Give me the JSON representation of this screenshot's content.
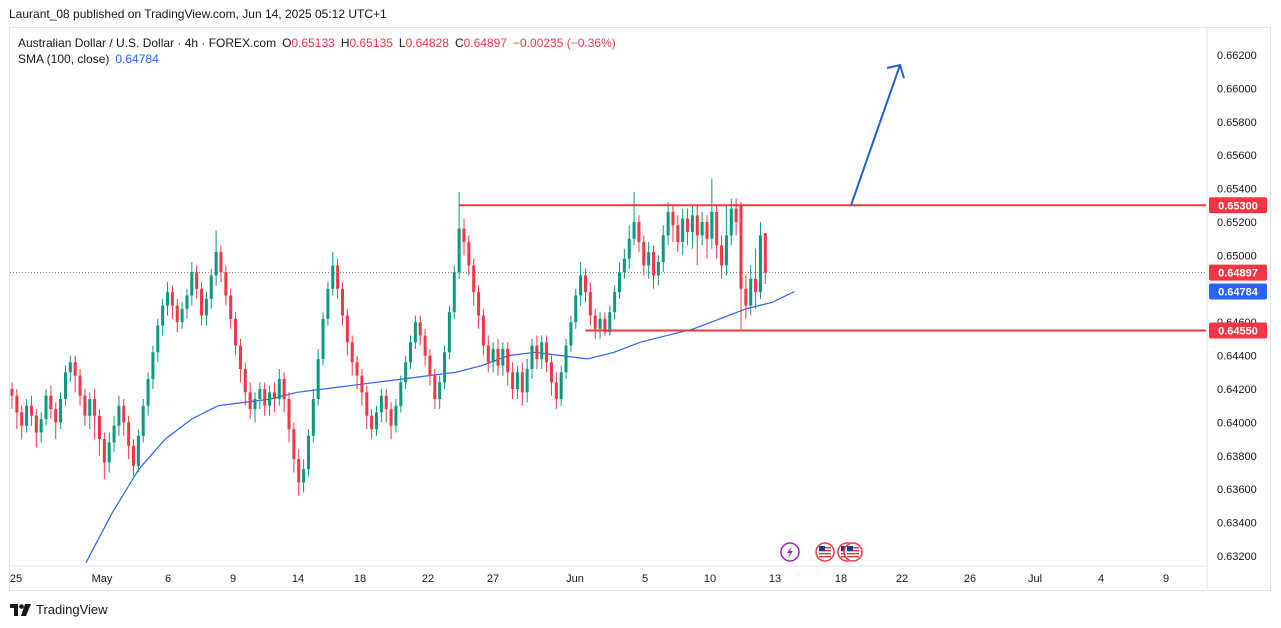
{
  "header": {
    "published": "Laurant_08 published on TradingView.com, Jun 14, 2025 05:12 UTC+1"
  },
  "legend": {
    "symbol": "Australian Dollar / U.S. Dollar · 4h · FOREX.com",
    "o_label": "O",
    "o_value": "0.65133",
    "h_label": "H",
    "h_value": "0.65135",
    "l_label": "L",
    "l_value": "0.64828",
    "c_label": "C",
    "c_value": "0.64897",
    "change": "−0.00235 (−0.36%)",
    "sma_label": "SMA (100, close)",
    "sma_value": "0.64784"
  },
  "brand": {
    "name": "TradingView"
  },
  "colors": {
    "up": "#089981",
    "down": "#f23645",
    "sma": "#2962ff",
    "level": "#f23645",
    "arrow": "#1e5fd6",
    "grid": "#f0f3fa"
  },
  "chart_data": {
    "type": "candlestick",
    "timeframe": "4h",
    "ylim": [
      0.6312,
      0.6628
    ],
    "y_ticks": [
      "0.66200",
      "0.66000",
      "0.65800",
      "0.65600",
      "0.65400",
      "0.65200",
      "0.65000",
      "0.64600",
      "0.64400",
      "0.64200",
      "0.64000",
      "0.63800",
      "0.63600",
      "0.63400",
      "0.63200"
    ],
    "x_ticks": [
      "25",
      "May",
      "6",
      "9",
      "14",
      "18",
      "22",
      "27",
      "Jun",
      "5",
      "10",
      "13",
      "18",
      "22",
      "26",
      "Jul",
      "4",
      "9"
    ],
    "price_labels": [
      {
        "label": "0.65300",
        "value": 0.653,
        "color": "#f23645"
      },
      {
        "label": "0.64897",
        "value": 0.64897,
        "color": "#f23645"
      },
      {
        "label": "0.64784",
        "value": 0.64784,
        "color": "#2962ff"
      },
      {
        "label": "0.64550",
        "value": 0.6455,
        "color": "#f23645"
      }
    ],
    "resistance": {
      "value": 0.653,
      "from_index": 92,
      "to_index": "end"
    },
    "support": {
      "value": 0.6455,
      "from_index": 118,
      "to_index": "end"
    },
    "current_price": 0.64897,
    "projection_arrow": {
      "from_price": 0.653,
      "to_price": 0.6614,
      "direction": "up"
    },
    "events": [
      "lightning",
      "us-flag",
      "us-flag",
      "us-flag"
    ],
    "candles": [
      [
        0.642,
        0.6416,
        0.6424,
        0.6408
      ],
      [
        0.6416,
        0.6406,
        0.642,
        0.6396
      ],
      [
        0.6406,
        0.6398,
        0.641,
        0.639
      ],
      [
        0.6398,
        0.641,
        0.6414,
        0.6394
      ],
      [
        0.641,
        0.6404,
        0.6416,
        0.6398
      ],
      [
        0.6404,
        0.6394,
        0.6408,
        0.6385
      ],
      [
        0.6394,
        0.6402,
        0.6406,
        0.6388
      ],
      [
        0.6402,
        0.6416,
        0.642,
        0.6398
      ],
      [
        0.6416,
        0.6408,
        0.6422,
        0.6402
      ],
      [
        0.6408,
        0.64,
        0.6412,
        0.639
      ],
      [
        0.64,
        0.6414,
        0.6418,
        0.6396
      ],
      [
        0.6414,
        0.643,
        0.6434,
        0.641
      ],
      [
        0.643,
        0.6436,
        0.644,
        0.6424
      ],
      [
        0.6436,
        0.6428,
        0.644,
        0.6418
      ],
      [
        0.6428,
        0.6416,
        0.6432,
        0.641
      ],
      [
        0.6416,
        0.6404,
        0.642,
        0.6398
      ],
      [
        0.6404,
        0.6414,
        0.6418,
        0.6396
      ],
      [
        0.6414,
        0.6404,
        0.642,
        0.639
      ],
      [
        0.6404,
        0.639,
        0.6408,
        0.638
      ],
      [
        0.639,
        0.6376,
        0.6394,
        0.6366
      ],
      [
        0.6376,
        0.6388,
        0.6394,
        0.637
      ],
      [
        0.6388,
        0.6398,
        0.6404,
        0.6382
      ],
      [
        0.6398,
        0.641,
        0.6416,
        0.6392
      ],
      [
        0.641,
        0.64,
        0.6414,
        0.6392
      ],
      [
        0.64,
        0.6386,
        0.6404,
        0.6378
      ],
      [
        0.6386,
        0.6374,
        0.639,
        0.6368
      ],
      [
        0.6374,
        0.6392,
        0.6396,
        0.637
      ],
      [
        0.6392,
        0.641,
        0.6414,
        0.6388
      ],
      [
        0.641,
        0.6426,
        0.643,
        0.6404
      ],
      [
        0.6426,
        0.6442,
        0.6446,
        0.642
      ],
      [
        0.6442,
        0.6458,
        0.6462,
        0.6436
      ],
      [
        0.6458,
        0.647,
        0.6474,
        0.6452
      ],
      [
        0.647,
        0.6478,
        0.6484,
        0.6464
      ],
      [
        0.6478,
        0.647,
        0.6482,
        0.6462
      ],
      [
        0.647,
        0.646,
        0.6474,
        0.6454
      ],
      [
        0.646,
        0.6468,
        0.6472,
        0.6456
      ],
      [
        0.6468,
        0.6476,
        0.648,
        0.6462
      ],
      [
        0.6476,
        0.649,
        0.6496,
        0.647
      ],
      [
        0.649,
        0.648,
        0.6494,
        0.6474
      ],
      [
        0.648,
        0.6464,
        0.6484,
        0.6458
      ],
      [
        0.6464,
        0.6474,
        0.6478,
        0.6458
      ],
      [
        0.6474,
        0.6488,
        0.6492,
        0.6468
      ],
      [
        0.6488,
        0.6502,
        0.6515,
        0.6482
      ],
      [
        0.6502,
        0.649,
        0.6506,
        0.6484
      ],
      [
        0.649,
        0.6476,
        0.6494,
        0.647
      ],
      [
        0.6476,
        0.6462,
        0.648,
        0.6456
      ],
      [
        0.6462,
        0.6446,
        0.6466,
        0.644
      ],
      [
        0.6446,
        0.6432,
        0.645,
        0.6424
      ],
      [
        0.6432,
        0.6418,
        0.6436,
        0.641
      ],
      [
        0.6418,
        0.6408,
        0.6424,
        0.6402
      ],
      [
        0.6408,
        0.6414,
        0.6418,
        0.64
      ],
      [
        0.6414,
        0.642,
        0.6424,
        0.6408
      ],
      [
        0.642,
        0.641,
        0.6424,
        0.6404
      ],
      [
        0.641,
        0.6418,
        0.6422,
        0.6404
      ],
      [
        0.6418,
        0.6414,
        0.6424,
        0.6406
      ],
      [
        0.6414,
        0.6426,
        0.6432,
        0.641
      ],
      [
        0.6426,
        0.6414,
        0.643,
        0.6406
      ],
      [
        0.6414,
        0.6396,
        0.6418,
        0.6388
      ],
      [
        0.6396,
        0.6378,
        0.64,
        0.637
      ],
      [
        0.6378,
        0.6364,
        0.6384,
        0.6356
      ],
      [
        0.6364,
        0.6372,
        0.6378,
        0.6358
      ],
      [
        0.6372,
        0.6392,
        0.6396,
        0.6368
      ],
      [
        0.6392,
        0.6414,
        0.642,
        0.6388
      ],
      [
        0.6414,
        0.6438,
        0.6444,
        0.641
      ],
      [
        0.6438,
        0.6462,
        0.6466,
        0.6434
      ],
      [
        0.6462,
        0.648,
        0.6484,
        0.6458
      ],
      [
        0.648,
        0.6494,
        0.6502,
        0.6476
      ],
      [
        0.6494,
        0.648,
        0.6498,
        0.6474
      ],
      [
        0.648,
        0.6464,
        0.6484,
        0.6458
      ],
      [
        0.6464,
        0.6448,
        0.6468,
        0.644
      ],
      [
        0.6448,
        0.6436,
        0.6452,
        0.6428
      ],
      [
        0.6436,
        0.6428,
        0.644,
        0.642
      ],
      [
        0.6428,
        0.6418,
        0.6432,
        0.641
      ],
      [
        0.6418,
        0.6404,
        0.6422,
        0.6396
      ],
      [
        0.6404,
        0.6396,
        0.6408,
        0.639
      ],
      [
        0.6396,
        0.6406,
        0.641,
        0.6392
      ],
      [
        0.6406,
        0.6416,
        0.642,
        0.64
      ],
      [
        0.6416,
        0.6408,
        0.642,
        0.64
      ],
      [
        0.6408,
        0.6398,
        0.6412,
        0.639
      ],
      [
        0.6398,
        0.641,
        0.6414,
        0.6394
      ],
      [
        0.641,
        0.6424,
        0.6428,
        0.6406
      ],
      [
        0.6424,
        0.6436,
        0.644,
        0.642
      ],
      [
        0.6436,
        0.6448,
        0.6452,
        0.6432
      ],
      [
        0.6448,
        0.646,
        0.6464,
        0.6444
      ],
      [
        0.646,
        0.6452,
        0.6464,
        0.6446
      ],
      [
        0.6452,
        0.644,
        0.6456,
        0.6434
      ],
      [
        0.644,
        0.6428,
        0.6444,
        0.6422
      ],
      [
        0.6428,
        0.6414,
        0.6432,
        0.6408
      ],
      [
        0.6414,
        0.6424,
        0.6428,
        0.6408
      ],
      [
        0.6424,
        0.6442,
        0.6446,
        0.642
      ],
      [
        0.6442,
        0.6466,
        0.647,
        0.6438
      ],
      [
        0.6466,
        0.649,
        0.6494,
        0.6462
      ],
      [
        0.649,
        0.6516,
        0.6538,
        0.6486
      ],
      [
        0.6516,
        0.6508,
        0.6522,
        0.65
      ],
      [
        0.6508,
        0.6494,
        0.6512,
        0.6488
      ],
      [
        0.6494,
        0.6478,
        0.6498,
        0.647
      ],
      [
        0.6478,
        0.6464,
        0.6482,
        0.6456
      ],
      [
        0.6464,
        0.6446,
        0.6468,
        0.644
      ],
      [
        0.6446,
        0.6436,
        0.6452,
        0.643
      ],
      [
        0.6436,
        0.6444,
        0.6448,
        0.643
      ],
      [
        0.6444,
        0.6434,
        0.645,
        0.6428
      ],
      [
        0.6434,
        0.6444,
        0.6448,
        0.6428
      ],
      [
        0.6444,
        0.643,
        0.6448,
        0.6422
      ],
      [
        0.643,
        0.642,
        0.6436,
        0.6414
      ],
      [
        0.642,
        0.643,
        0.6434,
        0.6414
      ],
      [
        0.643,
        0.6418,
        0.6436,
        0.641
      ],
      [
        0.6418,
        0.6432,
        0.6438,
        0.6412
      ],
      [
        0.6432,
        0.6446,
        0.645,
        0.6426
      ],
      [
        0.6446,
        0.6438,
        0.6452,
        0.6432
      ],
      [
        0.6438,
        0.6448,
        0.6452,
        0.6432
      ],
      [
        0.6448,
        0.6436,
        0.6452,
        0.643
      ],
      [
        0.6436,
        0.6424,
        0.644,
        0.6416
      ],
      [
        0.6424,
        0.6414,
        0.643,
        0.6408
      ],
      [
        0.6414,
        0.643,
        0.6434,
        0.641
      ],
      [
        0.643,
        0.6446,
        0.645,
        0.6426
      ],
      [
        0.6446,
        0.646,
        0.6464,
        0.6442
      ],
      [
        0.646,
        0.6476,
        0.648,
        0.6456
      ],
      [
        0.6476,
        0.6488,
        0.6496,
        0.647
      ],
      [
        0.6488,
        0.6478,
        0.6492,
        0.6472
      ],
      [
        0.6478,
        0.6464,
        0.6484,
        0.6458
      ],
      [
        0.6464,
        0.6456,
        0.6468,
        0.645
      ],
      [
        0.6456,
        0.6462,
        0.6466,
        0.645
      ],
      [
        0.6462,
        0.6454,
        0.6466,
        0.6452
      ],
      [
        0.6454,
        0.6466,
        0.647,
        0.6452
      ],
      [
        0.6466,
        0.6478,
        0.6482,
        0.6462
      ],
      [
        0.6478,
        0.649,
        0.6496,
        0.6474
      ],
      [
        0.649,
        0.6498,
        0.6504,
        0.6486
      ],
      [
        0.6498,
        0.651,
        0.6518,
        0.6492
      ],
      [
        0.651,
        0.652,
        0.6538,
        0.6506
      ],
      [
        0.652,
        0.6508,
        0.6524,
        0.6502
      ],
      [
        0.6508,
        0.6494,
        0.6512,
        0.6488
      ],
      [
        0.6494,
        0.6502,
        0.6508,
        0.6486
      ],
      [
        0.6502,
        0.6488,
        0.6506,
        0.648
      ],
      [
        0.6488,
        0.6496,
        0.65,
        0.6482
      ],
      [
        0.6496,
        0.6512,
        0.6518,
        0.649
      ],
      [
        0.6512,
        0.6526,
        0.6532,
        0.6506
      ],
      [
        0.6526,
        0.6518,
        0.653,
        0.6508
      ],
      [
        0.6518,
        0.6508,
        0.6524,
        0.6502
      ],
      [
        0.6508,
        0.6522,
        0.6528,
        0.65
      ],
      [
        0.6522,
        0.6514,
        0.6528,
        0.6506
      ],
      [
        0.6514,
        0.6524,
        0.653,
        0.6504
      ],
      [
        0.6524,
        0.6512,
        0.653,
        0.6494
      ],
      [
        0.6512,
        0.652,
        0.6526,
        0.6506
      ],
      [
        0.652,
        0.651,
        0.6524,
        0.6498
      ],
      [
        0.651,
        0.6526,
        0.6546,
        0.6504
      ],
      [
        0.6526,
        0.6506,
        0.653,
        0.6498
      ],
      [
        0.6506,
        0.6494,
        0.6512,
        0.6486
      ],
      [
        0.6494,
        0.6512,
        0.653,
        0.6488
      ],
      [
        0.6512,
        0.6528,
        0.6534,
        0.6506
      ],
      [
        0.6528,
        0.652,
        0.6534,
        0.6512
      ],
      [
        0.653,
        0.648,
        0.6532,
        0.6456
      ],
      [
        0.648,
        0.647,
        0.6488,
        0.6462
      ],
      [
        0.647,
        0.6486,
        0.6494,
        0.6464
      ],
      [
        0.6486,
        0.6478,
        0.6504,
        0.6468
      ],
      [
        0.6478,
        0.6512,
        0.652,
        0.6474
      ],
      [
        0.65133,
        0.64897,
        0.65135,
        0.64828
      ]
    ],
    "sma": [
      [
        0,
        0.6316
      ],
      [
        6,
        0.6346
      ],
      [
        12,
        0.6372
      ],
      [
        18,
        0.639
      ],
      [
        24,
        0.6402
      ],
      [
        30,
        0.641
      ],
      [
        36,
        0.6412
      ],
      [
        42,
        0.6414
      ],
      [
        48,
        0.6418
      ],
      [
        54,
        0.642
      ],
      [
        60,
        0.6422
      ],
      [
        66,
        0.6424
      ],
      [
        72,
        0.6426
      ],
      [
        78,
        0.6428
      ],
      [
        84,
        0.643
      ],
      [
        90,
        0.6434
      ],
      [
        96,
        0.644
      ],
      [
        102,
        0.6442
      ],
      [
        108,
        0.644
      ],
      [
        114,
        0.6438
      ],
      [
        120,
        0.6442
      ],
      [
        126,
        0.6448
      ],
      [
        132,
        0.6452
      ],
      [
        138,
        0.6456
      ],
      [
        144,
        0.6462
      ],
      [
        150,
        0.6468
      ],
      [
        156,
        0.6472
      ],
      [
        161,
        0.64784
      ]
    ]
  }
}
